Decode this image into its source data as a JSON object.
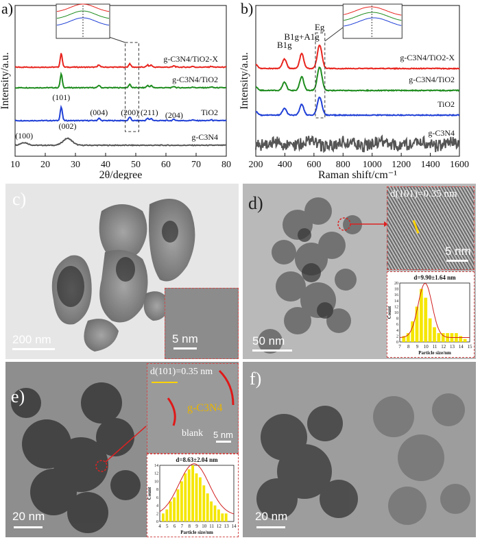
{
  "chart_data": [
    {
      "panel": "a)",
      "type": "line",
      "xlabel": "2θ/degree",
      "ylabel": "Intensity/a.u.",
      "xlim": [
        10,
        80
      ],
      "xticks": [
        "10",
        "20",
        "30",
        "40",
        "50",
        "60",
        "70",
        "80"
      ],
      "series": [
        {
          "name": "g-C3N4/TiO2-X",
          "color": "#e8241e"
        },
        {
          "name": "g-C3N4/TiO2",
          "color": "#1e8c1e"
        },
        {
          "name": "TiO2",
          "color": "#1f3fd6"
        },
        {
          "name": "g-C3N4",
          "color": "#555555"
        }
      ],
      "peak_labels": [
        "(101)",
        "(004)",
        "(200)",
        "(211)",
        "(204)",
        "(100)",
        "(002)"
      ],
      "peaks_deg": [
        25.3,
        37.8,
        48.0,
        54.5,
        62.7,
        13.0,
        27.4
      ],
      "grid": false,
      "legend": "right (inline labels)"
    },
    {
      "panel": "b)",
      "type": "line",
      "xlabel": "Raman shift/cm⁻¹",
      "ylabel": "Intensity/a.u.",
      "xlim": [
        200,
        1600
      ],
      "xticks": [
        "200",
        "400",
        "600",
        "800",
        "1000",
        "1200",
        "1400",
        "1600"
      ],
      "series": [
        {
          "name": "g-C3N4/TiO2-X",
          "color": "#e8241e"
        },
        {
          "name": "g-C3N4/TiO2",
          "color": "#1e8c1e"
        },
        {
          "name": "TiO2",
          "color": "#1f3fd6"
        },
        {
          "name": "g-C3N4",
          "color": "#555555"
        }
      ],
      "mode_labels": [
        "B1g",
        "B1g+A1g",
        "Eg"
      ],
      "modes_cm": [
        397,
        516,
        639
      ],
      "grid": false,
      "legend": "right (inline labels)"
    }
  ],
  "panels": {
    "c": {
      "label": "c)",
      "scale": "200 nm",
      "inset_scale": "5 nm"
    },
    "d": {
      "label": "d)",
      "scale": "50 nm",
      "inset_text": "d(101)=0.35 nm",
      "inset_scale": "5 nm",
      "hist": {
        "title": "d=9.90±1.64 nm",
        "xlabel": "Particle size/nm",
        "ylabel": "Count",
        "xticks": [
          "7",
          "8",
          "9",
          "10",
          "11",
          "12",
          "13",
          "14",
          "15"
        ],
        "yticks": [
          "0",
          "2",
          "4",
          "6",
          "8",
          "10",
          "12",
          "14",
          "16",
          "18",
          "20"
        ],
        "bars": [
          {
            "x": 7.5,
            "v": 2
          },
          {
            "x": 8,
            "v": 3
          },
          {
            "x": 8.5,
            "v": 7
          },
          {
            "x": 9,
            "v": 12
          },
          {
            "x": 9.5,
            "v": 18
          },
          {
            "x": 10,
            "v": 15
          },
          {
            "x": 10.5,
            "v": 8
          },
          {
            "x": 11,
            "v": 5
          },
          {
            "x": 11.5,
            "v": 3
          },
          {
            "x": 12,
            "v": 3
          },
          {
            "x": 12.5,
            "v": 3
          },
          {
            "x": 13,
            "v": 3
          },
          {
            "x": 13.5,
            "v": 3
          },
          {
            "x": 14,
            "v": 2
          },
          {
            "x": 14.5,
            "v": 1
          }
        ]
      }
    },
    "e": {
      "label": "e)",
      "scale": "20 nm",
      "inset_text": "d(101)=0.35 nm",
      "inset_material": "g-C3N4",
      "inset_blank": "blank",
      "inset_scale": "5 nm",
      "hist": {
        "title": "d=8.63±2.04 nm",
        "xlabel": "Particle size/nm",
        "ylabel": "Count",
        "xticks": [
          "4",
          "5",
          "6",
          "7",
          "8",
          "9",
          "10",
          "11",
          "12",
          "13",
          "14"
        ],
        "yticks": [
          "0",
          "2",
          "4",
          "6",
          "8",
          "10",
          "12",
          "14"
        ],
        "bars": [
          {
            "x": 4.5,
            "v": 2
          },
          {
            "x": 5,
            "v": 3
          },
          {
            "x": 5.5,
            "v": 5
          },
          {
            "x": 6,
            "v": 6
          },
          {
            "x": 6.5,
            "v": 8
          },
          {
            "x": 7,
            "v": 10
          },
          {
            "x": 7.5,
            "v": 12
          },
          {
            "x": 8,
            "v": 13
          },
          {
            "x": 8.5,
            "v": 14
          },
          {
            "x": 9,
            "v": 12
          },
          {
            "x": 9.5,
            "v": 11
          },
          {
            "x": 10,
            "v": 9
          },
          {
            "x": 10.5,
            "v": 7
          },
          {
            "x": 11,
            "v": 5
          },
          {
            "x": 11.5,
            "v": 4
          },
          {
            "x": 12,
            "v": 3
          },
          {
            "x": 12.5,
            "v": 2
          },
          {
            "x": 13,
            "v": 2
          }
        ]
      }
    },
    "f": {
      "label": "f)",
      "scale": "20 nm"
    }
  }
}
